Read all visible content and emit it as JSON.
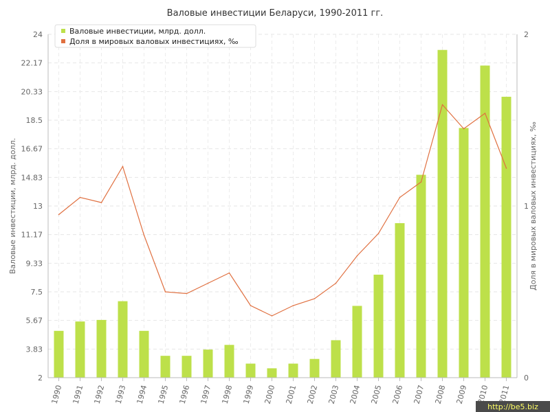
{
  "chart_data": {
    "type": "bar",
    "title": "Валовые инвестиции Беларуси, 1990-2011 гг.",
    "categories": [
      "1990",
      "1991",
      "1992",
      "1993",
      "1994",
      "1995",
      "1996",
      "1997",
      "1998",
      "1999",
      "2000",
      "2001",
      "2002",
      "2003",
      "2004",
      "2005",
      "2006",
      "2007",
      "2008",
      "2009",
      "2010",
      "2011"
    ],
    "series": [
      {
        "name": "Валовые инвестиции, млрд. долл.",
        "type": "bar",
        "axis": "left",
        "color": "#bde04a",
        "values": [
          5.0,
          5.6,
          5.7,
          6.9,
          5.0,
          3.4,
          3.4,
          3.8,
          4.1,
          2.9,
          2.6,
          2.9,
          3.2,
          4.4,
          6.6,
          8.6,
          11.9,
          15.0,
          23.0,
          18.0,
          22.0,
          20.0
        ]
      },
      {
        "name": "Доля в мировых валовых инвестициях, ‰",
        "type": "line",
        "axis": "right",
        "color": "#e07040",
        "values": [
          0.95,
          1.05,
          1.02,
          1.23,
          0.83,
          0.5,
          0.49,
          0.55,
          0.61,
          0.42,
          0.36,
          0.42,
          0.46,
          0.55,
          0.71,
          0.84,
          1.05,
          1.14,
          1.59,
          1.45,
          1.54,
          1.22
        ]
      }
    ],
    "ylabel": "Валовые инвестиции, млрд. долл.",
    "ylabel_right": "Доля в мировых валовых инвестициях, ‰",
    "ylim": [
      2,
      24
    ],
    "ylim_right": [
      0,
      2
    ],
    "yticks": [
      "2",
      "3.83",
      "5.67",
      "7.5",
      "9.33",
      "11.17",
      "13",
      "14.83",
      "16.67",
      "18.5",
      "20.33",
      "22.17",
      "24"
    ],
    "yticks_right": [
      "0",
      "1",
      "2"
    ],
    "grid": true,
    "legend_position": "top-left",
    "watermark": "http://be5.biz"
  }
}
